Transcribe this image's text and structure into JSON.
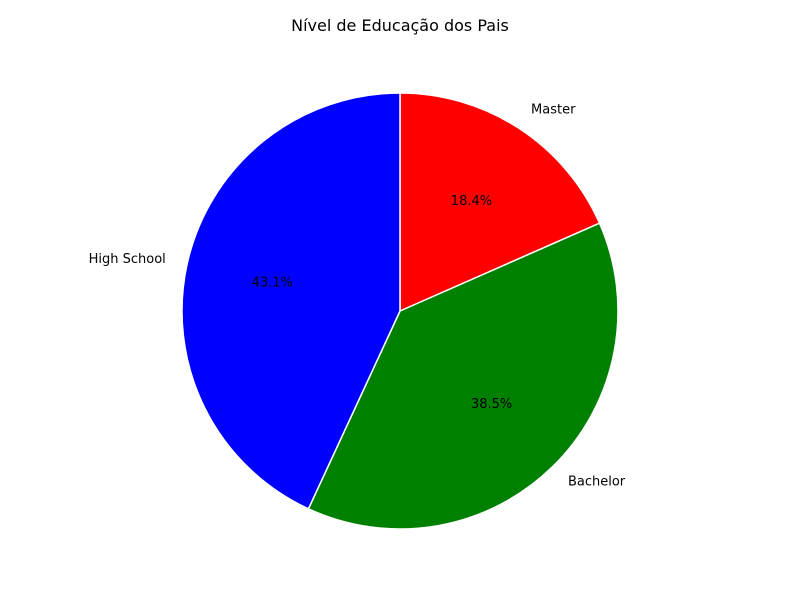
{
  "chart_data": {
    "type": "pie",
    "title": "Nível de Educação dos Pais",
    "categories": [
      "Master",
      "Bachelor",
      "High School"
    ],
    "values": [
      18.4,
      38.5,
      43.1
    ],
    "percent_labels": [
      "18.4%",
      "38.5%",
      "43.1%"
    ],
    "colors": [
      "#ff0000",
      "#008000",
      "#0000ff"
    ],
    "start_angle_deg": 90,
    "direction": "clockwise",
    "edge_color": "#ffffff",
    "legend": "none"
  }
}
